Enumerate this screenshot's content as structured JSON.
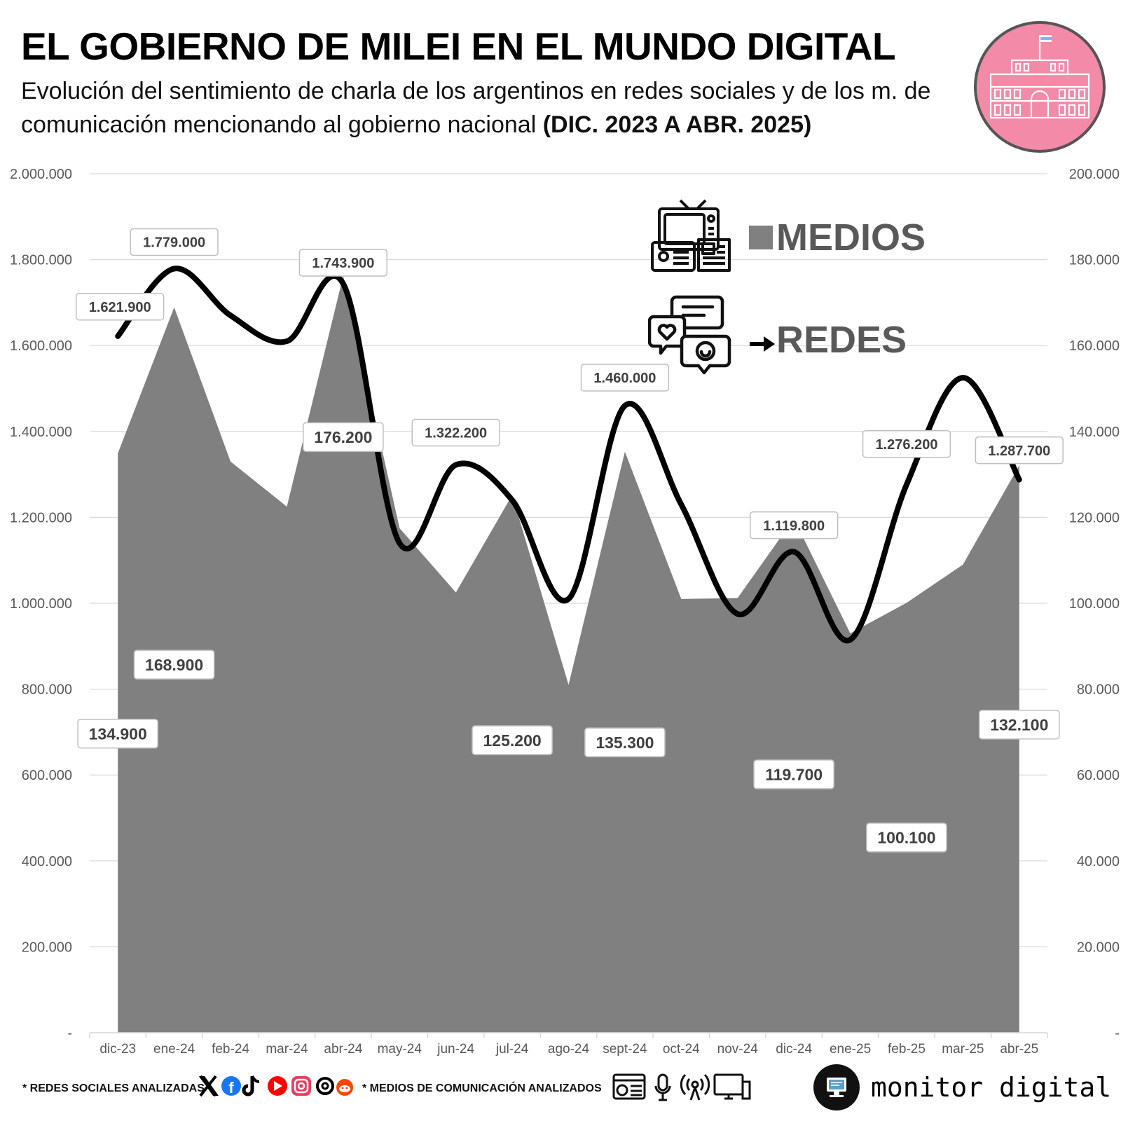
{
  "header": {
    "title": "EL GOBIERNO DE MILEI EN EL MUNDO DIGITAL",
    "subtitle_plain": "Evolución del sentimiento de charla de los argentinos en redes sociales y de los m. de comunicación mencionando al gobierno nacional",
    "subtitle_bold": "(DIC. 2023 A ABR. 2025)"
  },
  "legend": {
    "medios_label": "MEDIOS",
    "redes_label": "REDES",
    "medios_icon": "tv-radio-newspaper-icon",
    "redes_icon": "chat-bubbles-icon"
  },
  "footer": {
    "redes_note": "* REDES SOCIALES ANALIZADAS",
    "medios_note": "* MEDIOS DE COMUNICACIÓN ANALIZADOS",
    "brand": "monitor digital",
    "social_icons": [
      "x-icon",
      "facebook-icon",
      "tiktok-icon",
      "youtube-icon",
      "instagram-icon",
      "threads-icon",
      "reddit-icon"
    ],
    "media_icons": [
      "web-news-icon",
      "microphone-icon",
      "broadcast-icon",
      "tv-monitor-icon"
    ]
  },
  "colors": {
    "area": "#808080",
    "line": "#000000",
    "grid": "#d9d9d9",
    "badge": "#f28aa8",
    "axis_text": "#595959"
  },
  "chart_data": {
    "type": "area",
    "categories": [
      "dic-23",
      "ene-24",
      "feb-24",
      "mar-24",
      "abr-24",
      "may-24",
      "jun-24",
      "jul-24",
      "ago-24",
      "sept-24",
      "oct-24",
      "nov-24",
      "dic-24",
      "ene-25",
      "feb-25",
      "mar-25",
      "abr-25"
    ],
    "left_axis": {
      "ylim": [
        0,
        2000000
      ],
      "ticks": [
        0,
        200000,
        400000,
        600000,
        800000,
        1000000,
        1200000,
        1400000,
        1600000,
        1800000,
        2000000
      ],
      "tick_labels": [
        "-",
        "200.000",
        "400.000",
        "600.000",
        "800.000",
        "1.000.000",
        "1.200.000",
        "1.400.000",
        "1.600.000",
        "1.800.000",
        "2.000.000"
      ]
    },
    "right_axis": {
      "ylim": [
        0,
        200000
      ],
      "ticks": [
        0,
        20000,
        40000,
        60000,
        80000,
        100000,
        120000,
        140000,
        160000,
        180000,
        200000
      ],
      "tick_labels": [
        "-",
        "20.000",
        "40.000",
        "60.000",
        "80.000",
        "100.000",
        "120.000",
        "140.000",
        "160.000",
        "180.000",
        "200.000"
      ]
    },
    "series": [
      {
        "name": "MEDIOS",
        "kind": "area",
        "axis": "right",
        "values": [
          134900,
          168900,
          133000,
          122500,
          176200,
          117500,
          102500,
          125200,
          81000,
          135300,
          101000,
          101200,
          119700,
          93000,
          100100,
          109000,
          132100
        ],
        "labels": [
          {
            "index": 0,
            "text": "134.900"
          },
          {
            "index": 1,
            "text": "168.900"
          },
          {
            "index": 4,
            "text": "176.200"
          },
          {
            "index": 7,
            "text": "125.200"
          },
          {
            "index": 9,
            "text": "135.300"
          },
          {
            "index": 12,
            "text": "119.700"
          },
          {
            "index": 14,
            "text": "100.100"
          },
          {
            "index": 16,
            "text": "132.100"
          }
        ]
      },
      {
        "name": "REDES",
        "kind": "line",
        "axis": "left",
        "values": [
          1621900,
          1779000,
          1670000,
          1610000,
          1743900,
          1140000,
          1322200,
          1240000,
          1010000,
          1460000,
          1230000,
          975000,
          1119800,
          915000,
          1276200,
          1525000,
          1287700
        ],
        "labels": [
          {
            "index": 0,
            "text": "1.621.900"
          },
          {
            "index": 1,
            "text": "1.779.000"
          },
          {
            "index": 4,
            "text": "1.743.900"
          },
          {
            "index": 6,
            "text": "1.322.200"
          },
          {
            "index": 9,
            "text": "1.460.000"
          },
          {
            "index": 12,
            "text": "1.119.800"
          },
          {
            "index": 14,
            "text": "1.276.200"
          },
          {
            "index": 16,
            "text": "1.287.700"
          }
        ]
      }
    ],
    "grid": true
  }
}
